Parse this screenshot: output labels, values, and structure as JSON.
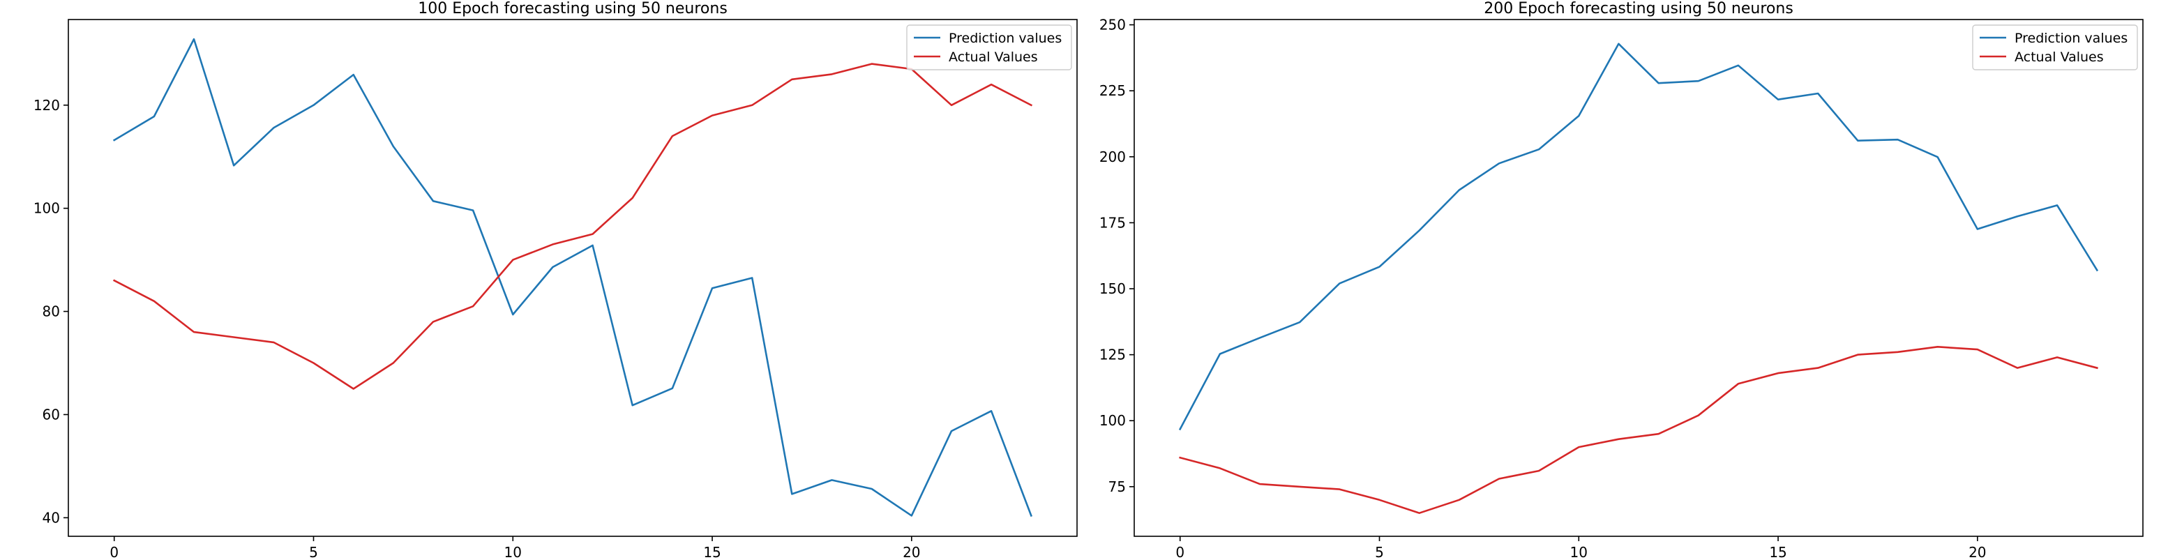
{
  "colors": {
    "prediction": "#1f77b4",
    "actual": "#d62728",
    "axes": "#000000",
    "background": "#ffffff"
  },
  "chart_data": [
    {
      "type": "line",
      "title": "100 Epoch forecasting using 50 neurons",
      "xlabel": "",
      "ylabel": "",
      "x": [
        0,
        1,
        2,
        3,
        4,
        5,
        6,
        7,
        8,
        9,
        10,
        11,
        12,
        13,
        14,
        15,
        16,
        17,
        18,
        19,
        20,
        21,
        22,
        23
      ],
      "xlim": [
        -1.15,
        24.15
      ],
      "ylim": [
        36.4,
        136.6
      ],
      "xticks": [
        0,
        5,
        10,
        15,
        20
      ],
      "xtick_labels": [
        "0",
        "5",
        "10",
        "15",
        "20"
      ],
      "yticks": [
        40,
        60,
        80,
        100,
        120
      ],
      "ytick_labels": [
        "40",
        "60",
        "80",
        "100",
        "120"
      ],
      "grid": false,
      "legend_position": "top-right",
      "series": [
        {
          "name": "Prediction values",
          "color": "#1f77b4",
          "values": [
            113.2,
            117.8,
            132.8,
            108.3,
            115.6,
            120.0,
            125.9,
            112.0,
            101.4,
            99.6,
            79.4,
            88.6,
            92.8,
            61.8,
            65.1,
            84.5,
            86.5,
            44.6,
            47.3,
            45.6,
            40.4,
            56.8,
            60.7,
            40.4
          ]
        },
        {
          "name": "Actual Values",
          "color": "#d62728",
          "values": [
            86,
            82,
            76,
            75,
            74,
            70,
            65,
            70,
            78,
            81,
            90,
            93,
            95,
            102,
            114,
            118,
            120,
            125,
            126,
            128,
            127,
            120,
            124,
            120
          ]
        }
      ]
    },
    {
      "type": "line",
      "title": "200 Epoch forecasting using 50 neurons",
      "xlabel": "",
      "ylabel": "",
      "x": [
        0,
        1,
        2,
        3,
        4,
        5,
        6,
        7,
        8,
        9,
        10,
        11,
        12,
        13,
        14,
        15,
        16,
        17,
        18,
        19,
        20,
        21,
        22,
        23
      ],
      "xlim": [
        -1.15,
        24.15
      ],
      "ylim": [
        56.2,
        252.0
      ],
      "xticks": [
        0,
        5,
        10,
        15,
        20
      ],
      "xtick_labels": [
        "0",
        "5",
        "10",
        "15",
        "20"
      ],
      "yticks": [
        75,
        100,
        125,
        150,
        175,
        200,
        225,
        250
      ],
      "ytick_labels": [
        "75",
        "100",
        "125",
        "150",
        "175",
        "200",
        "225",
        "250"
      ],
      "grid": false,
      "legend_position": "top-right",
      "series": [
        {
          "name": "Prediction values",
          "color": "#1f77b4",
          "values": [
            96.8,
            125.3,
            131.4,
            137.3,
            152.0,
            158.3,
            172.1,
            187.4,
            197.5,
            202.8,
            215.5,
            242.8,
            227.9,
            228.7,
            234.6,
            221.7,
            224.0,
            206.1,
            206.5,
            199.9,
            172.6,
            177.4,
            181.6,
            157.0
          ]
        },
        {
          "name": "Actual Values",
          "color": "#d62728",
          "values": [
            86,
            82,
            76,
            75,
            74,
            70,
            65,
            70,
            78,
            81,
            90,
            93,
            95,
            102,
            114,
            118,
            120,
            125,
            126,
            128,
            127,
            120,
            124,
            120
          ]
        }
      ]
    }
  ]
}
